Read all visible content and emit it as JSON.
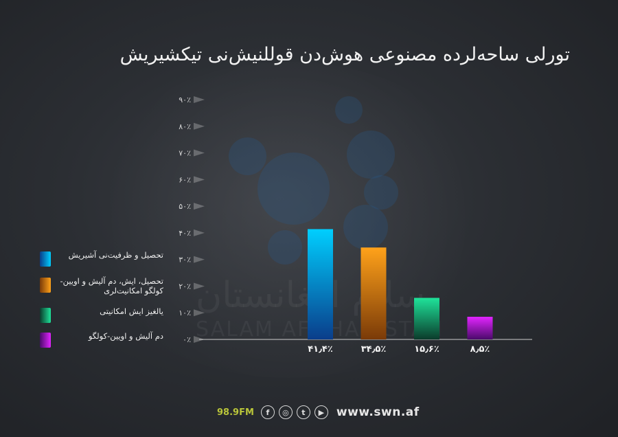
{
  "chart_data": {
    "type": "bar",
    "title": "تورلی ساحه‌لرده مصنوعی هوش‌دن قوللنیش‌نی تیکشیریش",
    "categories": [
      "تحصیل و ظرفیت‌نی آشیریش",
      "تحصیل، ایش، دم آلیش و اویین-کولگو امکانیت‌لری",
      "یالغیز ایش امکانیتی",
      "دم آلیش و اویین-کولگو"
    ],
    "values": [
      41.4,
      34.5,
      15.6,
      8.5
    ],
    "value_labels": [
      "۴۱٫۴٪",
      "۳۴٫۵٪",
      "۱۵٫۶٪",
      "۸٫۵٪"
    ],
    "ylim": [
      0,
      90
    ],
    "y_ticks": [
      "۰٪",
      "۱۰٪",
      "۲۰٪",
      "۳۰٪",
      "۴۰٪",
      "۵۰٪",
      "۶۰٪",
      "۷۰٪",
      "۸۰٪",
      "۹۰٪"
    ],
    "legend_position": "left",
    "grid": false,
    "colors": [
      [
        "#00cfff",
        "#0a3d8a"
      ],
      [
        "#ffa21a",
        "#7a3a08"
      ],
      [
        "#1fe39a",
        "#0b3b2b"
      ],
      [
        "#e225ff",
        "#4a0a6a"
      ]
    ]
  },
  "watermark": {
    "arabic": "سلام افغانستان",
    "latin": "SALAM AFGHANISTAN"
  },
  "footer": {
    "frequency": "98.9FM",
    "icons": [
      "facebook-icon",
      "instagram-icon",
      "twitter-icon",
      "youtube-icon"
    ],
    "icon_glyphs": [
      "f",
      "◎",
      "t",
      "▶"
    ],
    "website": "www.swn.af"
  }
}
